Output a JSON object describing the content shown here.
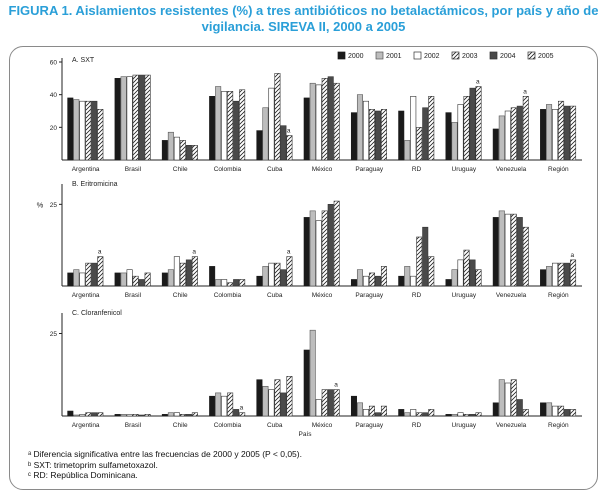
{
  "title": "FIGURA 1. Aislamientos resistentes (%) a tres antibióticos no betalactámicos, por país y año de vigilancia. SIREVA II, 2000 a 2005",
  "footnotes": [
    "ᵃ Diferencia significativa entre las frecuencias de 2000 y 2005 (P < 0,05).",
    "ᵇ SXT: trimetoprim sulfametoxazol.",
    "ᶜ RD: República Dominicana."
  ],
  "legend": [
    "2000",
    "2001",
    "2002",
    "2003",
    "2004",
    "2005"
  ],
  "chart_data": [
    {
      "type": "bar",
      "title": "A. SXT",
      "ylabel": "",
      "ylim": [
        0,
        60
      ],
      "yticks": [
        "60",
        "40",
        "20"
      ],
      "categories": [
        "Argentina",
        "Brasil",
        "Chile",
        "Colombia",
        "Cuba",
        "México",
        "Paraguay",
        "RD",
        "Uruguay",
        "Venezuela",
        "Región"
      ],
      "series": [
        {
          "name": "2000",
          "values": [
            38,
            50,
            12,
            39,
            18,
            38,
            29,
            30,
            29,
            19,
            31
          ]
        },
        {
          "name": "2001",
          "values": [
            37,
            51,
            17,
            45,
            32,
            47,
            40,
            12,
            23,
            27,
            34
          ]
        },
        {
          "name": "2002",
          "values": [
            36,
            51,
            14,
            42,
            44,
            46,
            36,
            39,
            34,
            30,
            31
          ]
        },
        {
          "name": "2003",
          "values": [
            36,
            52,
            12,
            42,
            53,
            50,
            31,
            20,
            39,
            32,
            36
          ]
        },
        {
          "name": "2004",
          "values": [
            36,
            52,
            9,
            36,
            21,
            51,
            30,
            32,
            44,
            33,
            33
          ]
        },
        {
          "name": "2005",
          "values": [
            31,
            52,
            9,
            43,
            15,
            47,
            31,
            39,
            45,
            39,
            33
          ]
        }
      ],
      "significance_marks": [
        {
          "category": "Cuba",
          "label": "a"
        },
        {
          "category": "Uruguay",
          "label": "a"
        },
        {
          "category": "Venezuela",
          "label": "a"
        }
      ]
    },
    {
      "type": "bar",
      "title": "B. Eritromicina",
      "ylabel": "%",
      "ylim": [
        0,
        30
      ],
      "yticks": [
        "25"
      ],
      "categories": [
        "Argentina",
        "Brasil",
        "Chile",
        "Colombia",
        "Cuba",
        "México",
        "Paraguay",
        "RD",
        "Uruguay",
        "Venezuela",
        "Región"
      ],
      "series": [
        {
          "name": "2000",
          "values": [
            4,
            4,
            4,
            6,
            3,
            21,
            2,
            3,
            2,
            21,
            5
          ]
        },
        {
          "name": "2001",
          "values": [
            5,
            4,
            5,
            2,
            6,
            23,
            5,
            6,
            5,
            23,
            6
          ]
        },
        {
          "name": "2002",
          "values": [
            4,
            5,
            9,
            2,
            7,
            20,
            3,
            3,
            8,
            22,
            7
          ]
        },
        {
          "name": "2003",
          "values": [
            7,
            3,
            7,
            1,
            7,
            23,
            4,
            15,
            11,
            22,
            7
          ]
        },
        {
          "name": "2004",
          "values": [
            7,
            2,
            8,
            2,
            5,
            25,
            3,
            18,
            8,
            21,
            7
          ]
        },
        {
          "name": "2005",
          "values": [
            9,
            4,
            9,
            2,
            9,
            26,
            6,
            9,
            5,
            18,
            8
          ]
        }
      ],
      "significance_marks": [
        {
          "category": "Argentina",
          "label": "a"
        },
        {
          "category": "Chile",
          "label": "a"
        },
        {
          "category": "Cuba",
          "label": "a"
        },
        {
          "category": "Región",
          "label": "a"
        }
      ]
    },
    {
      "type": "bar",
      "title": "C. Cloranfenicol",
      "ylabel": "",
      "xlabel": "País",
      "ylim": [
        0,
        30
      ],
      "yticks": [
        "25"
      ],
      "categories": [
        "Argentina",
        "Brasil",
        "Chile",
        "Colombia",
        "Cuba",
        "México",
        "Paraguay",
        "RD",
        "Uruguay",
        "Venezuela",
        "Región"
      ],
      "series": [
        {
          "name": "2000",
          "values": [
            1.5,
            0.5,
            0.5,
            6,
            11,
            20,
            6,
            2,
            0.5,
            4,
            4
          ]
        },
        {
          "name": "2001",
          "values": [
            0.3,
            0.5,
            1,
            7,
            9,
            26,
            4,
            1,
            0.5,
            11,
            4
          ]
        },
        {
          "name": "2002",
          "values": [
            0.5,
            0.4,
            1,
            6,
            8,
            5,
            2,
            2,
            1,
            10,
            3
          ]
        },
        {
          "name": "2003",
          "values": [
            1,
            0.5,
            0.5,
            7,
            11,
            8,
            3,
            1,
            0.5,
            11,
            3
          ]
        },
        {
          "name": "2004",
          "values": [
            1,
            0.3,
            0.5,
            2,
            7,
            8,
            1,
            1,
            0.5,
            5,
            2
          ]
        },
        {
          "name": "2005",
          "values": [
            1,
            0.5,
            1,
            1,
            12,
            8,
            3,
            2,
            1,
            2,
            2
          ]
        }
      ],
      "significance_marks": [
        {
          "category": "Colombia",
          "label": "a"
        },
        {
          "category": "México",
          "label": "a"
        }
      ]
    }
  ]
}
